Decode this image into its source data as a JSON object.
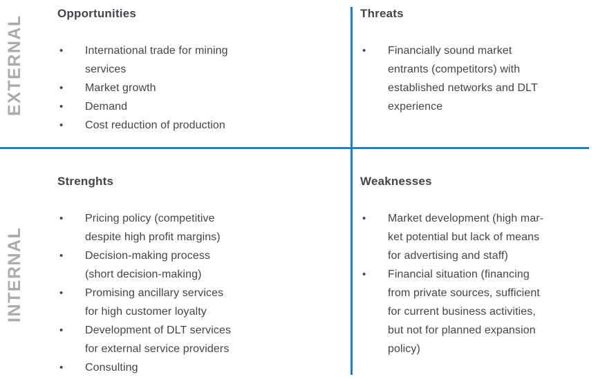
{
  "colors": {
    "divider": "#1e7ec2",
    "axis_label": "#a9abad",
    "text": "#414549"
  },
  "bullet": {
    "glyph": "•"
  },
  "axes": {
    "external": "EXTERNAL",
    "internal": "INTERNAL"
  },
  "quadrants": {
    "opportunities": {
      "title": "Opportunities",
      "items": [
        "International trade for mining\nservices",
        "Market growth",
        "Demand",
        "Cost reduction of production"
      ]
    },
    "threats": {
      "title": "Threats",
      "items": [
        "Financially sound market\nentrants (competitors) with\nestablished networks and DLT\nexperience"
      ]
    },
    "strengths": {
      "title": "Strenghts",
      "items": [
        "Pricing policy (competitive\ndespite high profit margins)",
        "Decision-making process\n(short decision-making)",
        "Promising ancillary services\nfor high customer loyalty",
        "Development of DLT services\nfor external service providers",
        "Consulting"
      ]
    },
    "weaknesses": {
      "title": "Weaknesses",
      "items": [
        "Market development (high mar-\nket potential but lack of means\nfor advertising and staff)",
        "Financial situation (financing\nfrom private sources, sufficient\nfor current business activities,\nbut not for planned expansion\npolicy)"
      ]
    }
  }
}
